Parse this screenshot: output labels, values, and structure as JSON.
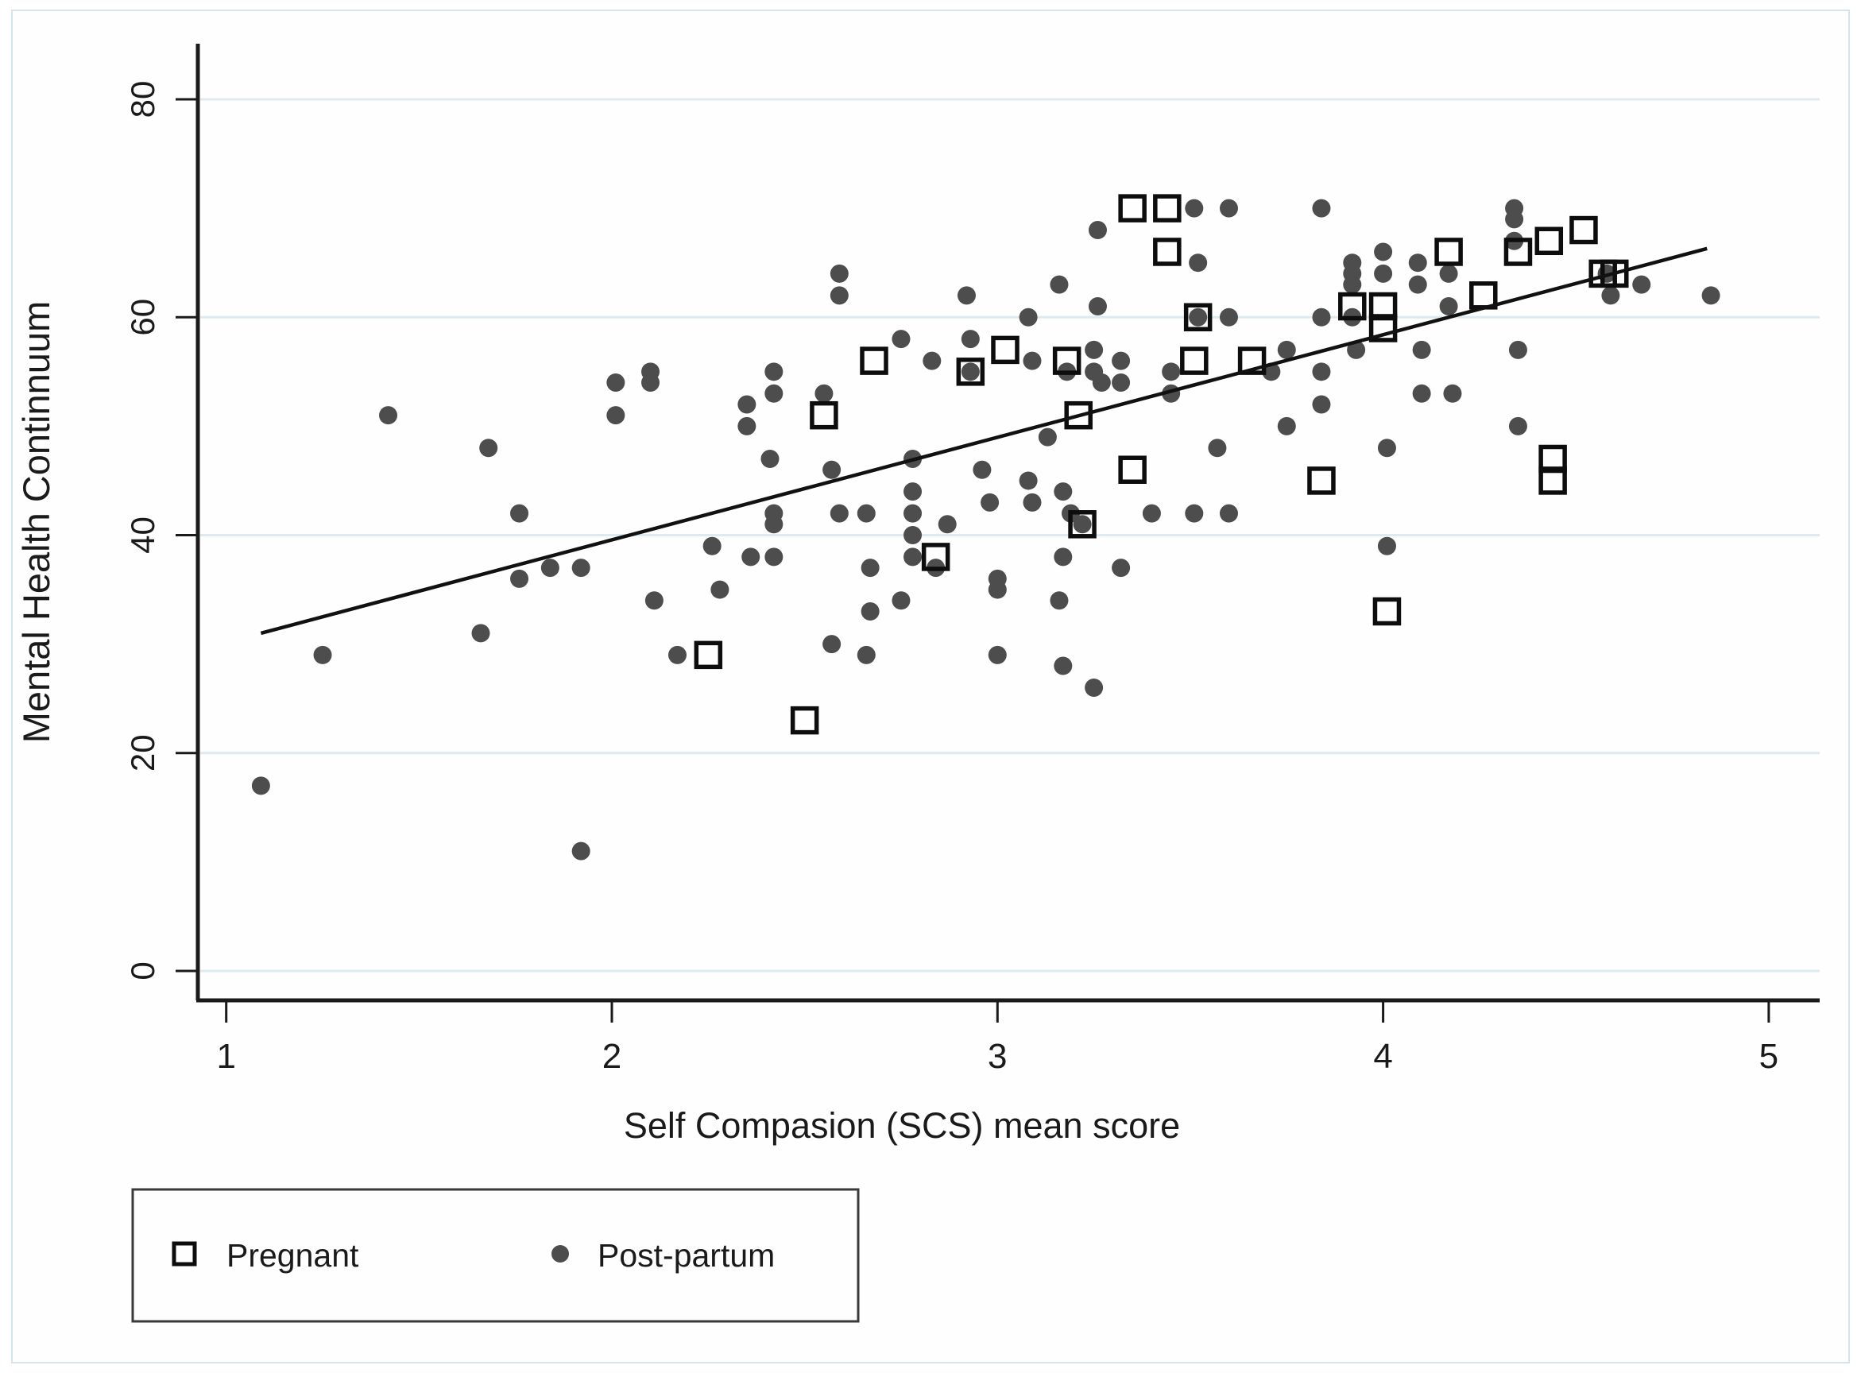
{
  "chart_data": {
    "type": "scatter",
    "title": "",
    "xlabel": "Self Compasion (SCS) mean score",
    "ylabel": "Mental Health Continnuum",
    "x_ticks": [
      1,
      2,
      3,
      4,
      5
    ],
    "y_ticks": [
      0,
      20,
      40,
      60,
      80
    ],
    "xlim": [
      0.93,
      5.12
    ],
    "ylim": [
      -2.7,
      85
    ],
    "grid": "horizontal-light-gridlines-at-y-ticks",
    "colors": {
      "dot_fill": "#4d4d4d",
      "square_stroke": "#0d0d0d",
      "line": "#111111",
      "axis": "#1a1a1a",
      "gridline": "#ddeaf0",
      "frame_border": "#d3e4ec"
    },
    "legend": {
      "position": "bottom-left",
      "items": [
        {
          "label": "Pregnant",
          "marker": "open-square"
        },
        {
          "label": "Post-partum",
          "marker": "filled-circle"
        }
      ]
    },
    "fit_line": {
      "x1": 1.09,
      "y1": 31.0,
      "x2": 4.84,
      "y2": 66.3
    },
    "series": [
      {
        "name": "Pregnant",
        "marker": "open-square",
        "points": [
          [
            2.25,
            29
          ],
          [
            2.5,
            23
          ],
          [
            2.55,
            51
          ],
          [
            2.68,
            56
          ],
          [
            2.84,
            38
          ],
          [
            2.93,
            55
          ],
          [
            3.02,
            57
          ],
          [
            3.18,
            56
          ],
          [
            3.21,
            51
          ],
          [
            3.22,
            41
          ],
          [
            3.35,
            46
          ],
          [
            3.35,
            70
          ],
          [
            3.44,
            70
          ],
          [
            3.44,
            66
          ],
          [
            3.51,
            56
          ],
          [
            3.52,
            60
          ],
          [
            3.66,
            56
          ],
          [
            3.84,
            45
          ],
          [
            3.92,
            61
          ],
          [
            4.0,
            61
          ],
          [
            4.0,
            59
          ],
          [
            4.01,
            33
          ],
          [
            4.17,
            66
          ],
          [
            4.26,
            62
          ],
          [
            4.35,
            66
          ],
          [
            4.43,
            67
          ],
          [
            4.44,
            47
          ],
          [
            4.44,
            45
          ],
          [
            4.52,
            68
          ],
          [
            4.57,
            64
          ],
          [
            4.6,
            64
          ]
        ]
      },
      {
        "name": "Post-partum",
        "marker": "filled-circle",
        "points": [
          [
            1.09,
            17
          ],
          [
            1.25,
            29
          ],
          [
            1.42,
            51
          ],
          [
            1.66,
            31
          ],
          [
            1.68,
            48
          ],
          [
            1.76,
            42
          ],
          [
            1.76,
            36
          ],
          [
            1.84,
            37
          ],
          [
            1.92,
            37
          ],
          [
            1.92,
            11
          ],
          [
            2.01,
            54
          ],
          [
            2.01,
            51
          ],
          [
            2.1,
            55
          ],
          [
            2.1,
            54
          ],
          [
            2.11,
            34
          ],
          [
            2.17,
            29
          ],
          [
            2.26,
            39
          ],
          [
            2.28,
            35
          ],
          [
            2.35,
            52
          ],
          [
            2.35,
            50
          ],
          [
            2.36,
            38
          ],
          [
            2.41,
            47
          ],
          [
            2.42,
            55
          ],
          [
            2.42,
            53
          ],
          [
            2.42,
            42
          ],
          [
            2.42,
            41
          ],
          [
            2.42,
            38
          ],
          [
            2.55,
            53
          ],
          [
            2.57,
            46
          ],
          [
            2.57,
            30
          ],
          [
            2.59,
            64
          ],
          [
            2.59,
            62
          ],
          [
            2.59,
            42
          ],
          [
            2.66,
            42
          ],
          [
            2.66,
            29
          ],
          [
            2.67,
            37
          ],
          [
            2.67,
            33
          ],
          [
            2.75,
            58
          ],
          [
            2.75,
            34
          ],
          [
            2.78,
            47
          ],
          [
            2.78,
            44
          ],
          [
            2.78,
            42
          ],
          [
            2.78,
            40
          ],
          [
            2.78,
            38
          ],
          [
            2.83,
            56
          ],
          [
            2.84,
            37
          ],
          [
            2.87,
            41
          ],
          [
            2.92,
            62
          ],
          [
            2.93,
            58
          ],
          [
            2.93,
            55
          ],
          [
            2.96,
            46
          ],
          [
            2.98,
            43
          ],
          [
            3.0,
            36
          ],
          [
            3.0,
            35
          ],
          [
            3.0,
            29
          ],
          [
            3.08,
            60
          ],
          [
            3.08,
            45
          ],
          [
            3.09,
            56
          ],
          [
            3.09,
            43
          ],
          [
            3.13,
            49
          ],
          [
            3.16,
            63
          ],
          [
            3.16,
            34
          ],
          [
            3.17,
            44
          ],
          [
            3.17,
            38
          ],
          [
            3.17,
            28
          ],
          [
            3.18,
            55
          ],
          [
            3.19,
            42
          ],
          [
            3.22,
            41
          ],
          [
            3.25,
            57
          ],
          [
            3.25,
            55
          ],
          [
            3.25,
            26
          ],
          [
            3.26,
            68
          ],
          [
            3.26,
            61
          ],
          [
            3.27,
            54
          ],
          [
            3.32,
            56
          ],
          [
            3.32,
            54
          ],
          [
            3.32,
            37
          ],
          [
            3.4,
            42
          ],
          [
            3.45,
            55
          ],
          [
            3.45,
            53
          ],
          [
            3.51,
            70
          ],
          [
            3.51,
            42
          ],
          [
            3.52,
            65
          ],
          [
            3.52,
            60
          ],
          [
            3.57,
            48
          ],
          [
            3.6,
            70
          ],
          [
            3.6,
            60
          ],
          [
            3.6,
            42
          ],
          [
            3.71,
            55
          ],
          [
            3.75,
            57
          ],
          [
            3.75,
            50
          ],
          [
            3.84,
            70
          ],
          [
            3.84,
            60
          ],
          [
            3.84,
            55
          ],
          [
            3.84,
            52
          ],
          [
            3.92,
            65
          ],
          [
            3.92,
            64
          ],
          [
            3.92,
            63
          ],
          [
            3.92,
            60
          ],
          [
            3.93,
            57
          ],
          [
            4.0,
            66
          ],
          [
            4.0,
            64
          ],
          [
            4.01,
            48
          ],
          [
            4.01,
            39
          ],
          [
            4.09,
            65
          ],
          [
            4.09,
            63
          ],
          [
            4.1,
            57
          ],
          [
            4.1,
            53
          ],
          [
            4.17,
            64
          ],
          [
            4.17,
            61
          ],
          [
            4.18,
            53
          ],
          [
            4.34,
            70
          ],
          [
            4.34,
            69
          ],
          [
            4.34,
            67
          ],
          [
            4.35,
            57
          ],
          [
            4.35,
            50
          ],
          [
            4.58,
            64
          ],
          [
            4.59,
            62
          ],
          [
            4.67,
            63
          ],
          [
            4.85,
            62
          ]
        ]
      }
    ]
  }
}
